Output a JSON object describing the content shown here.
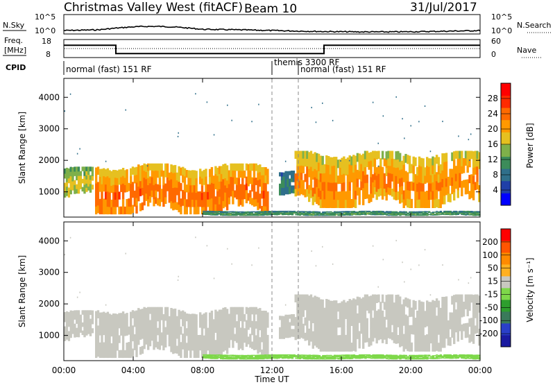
{
  "header": {
    "title": "Christmas Valley West (fitACF)",
    "beam": "Beam 10",
    "date": "31/Jul/2017"
  },
  "noise_panel": {
    "left_label": "N.Sky",
    "right_label": "N.Search",
    "left_ticks": [
      "10^5",
      "10^0"
    ],
    "right_ticks": [
      "10^5",
      "10^0"
    ]
  },
  "freq_panel": {
    "left_label_1": "Freq.",
    "left_label_2": "[MHz]",
    "right_label": "Nave",
    "left_ticks": [
      "18",
      "8"
    ],
    "right_ticks": [
      "60",
      "0"
    ]
  },
  "cpid": {
    "label": "CPID",
    "segments": [
      {
        "text": "normal (fast) 151 RF",
        "start_hour": 0
      },
      {
        "text": "themis 3300 RF",
        "start_hour": 12
      },
      {
        "text": "normal (fast) 151 RF",
        "start_hour": 13.5
      }
    ]
  },
  "x_axis": {
    "label": "Time UT",
    "ticks": [
      "00:00",
      "04:00",
      "08:00",
      "12:00",
      "16:00",
      "20:00",
      "00:00"
    ],
    "tick_hours": [
      0,
      4,
      8,
      12,
      16,
      20,
      24
    ]
  },
  "y_axis": {
    "label": "Slant Range [km]",
    "ticks": [
      "1000",
      "2000",
      "3000",
      "4000"
    ],
    "tick_values": [
      1000,
      2000,
      3000,
      4000
    ],
    "range": [
      200,
      4600
    ]
  },
  "power_colorbar": {
    "label": "Power [dB]",
    "ticks": [
      "28",
      "24",
      "20",
      "16",
      "12",
      "8",
      "4"
    ],
    "colors": [
      "#0000ff",
      "#1f3fa8",
      "#2f6f8a",
      "#3c8c5a",
      "#7fb04a",
      "#e6c020",
      "#ff9900",
      "#ff6a00",
      "#ff2a00",
      "#ff0000"
    ]
  },
  "velocity_colorbar": {
    "label": "Velocity [m s⁻¹]",
    "ticks": [
      "200",
      "100",
      "50",
      "15",
      "-15",
      "-50",
      "-100",
      "-200"
    ],
    "colors": [
      "#1a1aa0",
      "#2a3fc8",
      "#3a7a5a",
      "#2e9e2e",
      "#7ed84a",
      "#c8c8c0",
      "#ffb020",
      "#ff8a00",
      "#ff5500",
      "#ff0000"
    ]
  },
  "chart_data": {
    "type": "heatmap",
    "panels": [
      "Power",
      "Velocity"
    ],
    "time_range_hours": [
      0,
      24
    ],
    "range_km": [
      200,
      4600
    ],
    "frequency_mhz": [
      {
        "start_hour": 0,
        "end_hour": 3,
        "value": 15
      },
      {
        "start_hour": 3,
        "end_hour": 15,
        "value": 10
      },
      {
        "start_hour": 15,
        "end_hour": 24,
        "value": 15
      }
    ],
    "scatter_bands": [
      {
        "hour_start": 0,
        "hour_end": 1.7,
        "range_low": 800,
        "range_high": 1800,
        "power_db": 18,
        "velocity": -15
      },
      {
        "hour_start": 1.8,
        "hour_end": 11.8,
        "range_low": 300,
        "range_high": 1900,
        "power_db": 26,
        "velocity": -15
      },
      {
        "hour_start": 12.4,
        "hour_end": 13.3,
        "range_low": 900,
        "range_high": 1700,
        "power_db": 10,
        "velocity": -15
      },
      {
        "hour_start": 13.3,
        "hour_end": 24,
        "range_low": 500,
        "range_high": 2300,
        "power_db": 24,
        "velocity": -15
      },
      {
        "hour_start": 8,
        "hour_end": 24,
        "range_low": 250,
        "range_high": 400,
        "power_db": 12,
        "velocity": 30
      }
    ]
  }
}
